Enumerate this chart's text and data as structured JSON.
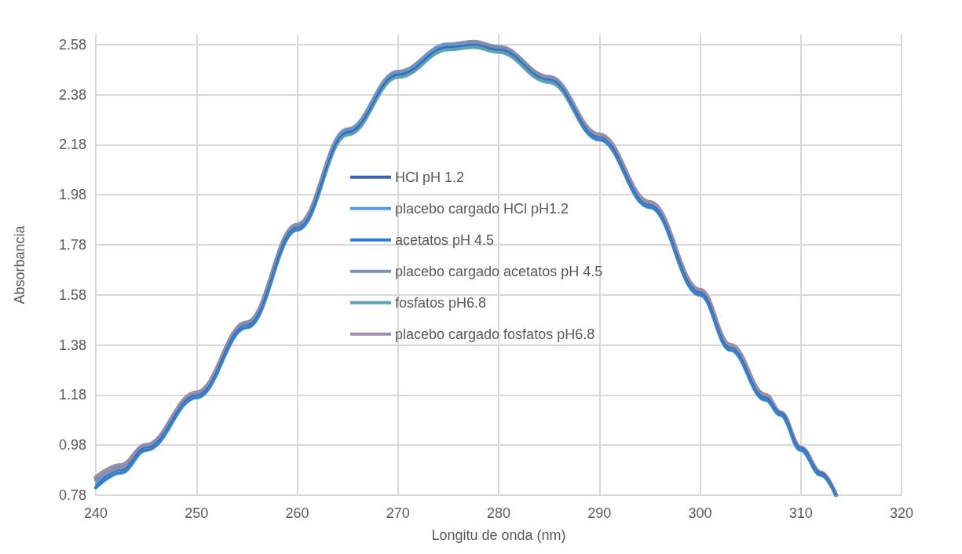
{
  "chart_data": {
    "type": "line",
    "xlabel": "Longitu de onda (nm)",
    "ylabel": "Absorbancia",
    "x": [
      240,
      242.5,
      245,
      250,
      255,
      260,
      265,
      270,
      275,
      277.5,
      280,
      285,
      290,
      295,
      300,
      303,
      306.5,
      308,
      310,
      312,
      313.5
    ],
    "xlim": [
      240,
      320
    ],
    "xticks": [
      240,
      250,
      260,
      270,
      280,
      290,
      300,
      310,
      320
    ],
    "ylim": [
      0.78,
      2.62
    ],
    "yticks": [
      0.78,
      0.98,
      1.18,
      1.38,
      1.58,
      1.78,
      1.98,
      2.18,
      2.38,
      2.58
    ],
    "grid": true,
    "legend": "center",
    "marker": "none",
    "line_style": "solid",
    "series": [
      {
        "name": "HCl pH 1.2",
        "color": "#4262a8",
        "values": [
          0.82,
          0.88,
          0.97,
          1.18,
          1.46,
          1.85,
          2.23,
          2.46,
          2.57,
          2.58,
          2.56,
          2.44,
          2.21,
          1.94,
          1.59,
          1.37,
          1.17,
          1.11,
          0.97,
          0.87,
          0.78
        ]
      },
      {
        "name": "placebo cargado HCl pH1.2",
        "color": "#5b9bd5",
        "values": [
          0.83,
          0.88,
          0.97,
          1.18,
          1.46,
          1.85,
          2.24,
          2.47,
          2.58,
          2.58,
          2.56,
          2.44,
          2.21,
          1.94,
          1.59,
          1.37,
          1.17,
          1.11,
          0.97,
          0.87,
          0.78
        ]
      },
      {
        "name": "acetatos pH 4.5",
        "color": "#2e7fd6",
        "values": [
          0.81,
          0.87,
          0.96,
          1.17,
          1.45,
          1.84,
          2.23,
          2.46,
          2.57,
          2.58,
          2.56,
          2.44,
          2.2,
          1.93,
          1.58,
          1.36,
          1.16,
          1.1,
          0.96,
          0.86,
          0.78
        ]
      },
      {
        "name": "placebo cargado acetatos pH 4.5",
        "color": "#7f8fb0",
        "values": [
          0.84,
          0.89,
          0.98,
          1.18,
          1.47,
          1.86,
          2.24,
          2.47,
          2.58,
          2.59,
          2.57,
          2.45,
          2.21,
          1.94,
          1.59,
          1.37,
          1.17,
          1.11,
          0.97,
          0.87,
          0.78
        ]
      },
      {
        "name": "fosfatos pH6.8",
        "color": "#5ba3b0",
        "values": [
          0.81,
          0.87,
          0.96,
          1.17,
          1.45,
          1.84,
          2.22,
          2.45,
          2.56,
          2.57,
          2.55,
          2.43,
          2.2,
          1.93,
          1.58,
          1.36,
          1.16,
          1.1,
          0.96,
          0.86,
          0.78
        ]
      },
      {
        "name": "placebo cargado fosfatos pH6.8",
        "color": "#9a8fa5",
        "values": [
          0.85,
          0.9,
          0.98,
          1.19,
          1.47,
          1.86,
          2.24,
          2.47,
          2.58,
          2.59,
          2.57,
          2.45,
          2.22,
          1.95,
          1.6,
          1.38,
          1.18,
          1.11,
          0.97,
          0.87,
          0.78
        ]
      }
    ]
  }
}
